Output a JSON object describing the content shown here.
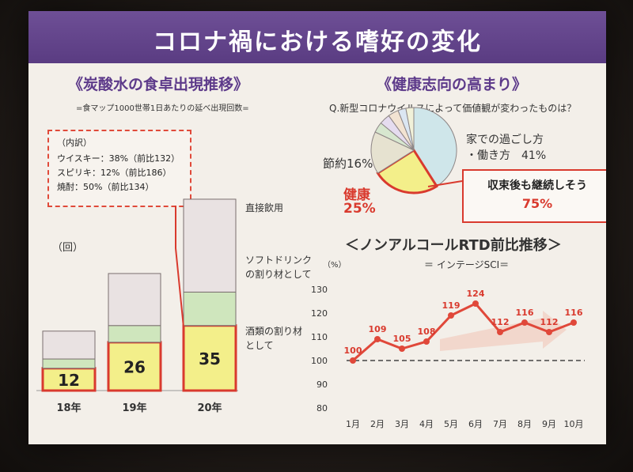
{
  "slide": {
    "title": "コロナ禍における嗜好の変化"
  },
  "left": {
    "heading": "《炭酸水の食卓出現推移》",
    "note": "=食マップ1000世帯1日あたりの延べ出現回数=",
    "unit_label": "（回）",
    "breakdown": {
      "heading": "（内訳）",
      "lines": [
        "ウイスキー：38%（前比132）",
        "スピリキ：12%（前比186）",
        "焼酎：50%（前比134）"
      ]
    },
    "legend": [
      "直接飲用",
      "ソフトドリンクの割り材として",
      "酒類の割り材として"
    ]
  },
  "right_top": {
    "heading": "《健康志向の高まり》",
    "question": "Q.新型コロナウイルスによって価値観が変わったものは？",
    "callout_line1": "収束後も継続しそう",
    "callout_line2": "75%",
    "labels": {
      "home_line1": "家での過ごし方",
      "home_line2": "・働き方　41%",
      "saving": "節約16%",
      "health_word": "健康",
      "health_pct": "25%"
    }
  },
  "right_bottom": {
    "heading": "＜ノンアルコールRTD前比推移＞",
    "subtitle": "＝ インテージSCI＝",
    "unit": "（%）"
  },
  "colors": {
    "purple": "#5d3a8a",
    "red": "#d93a2e",
    "yellow": "#f3ef8a",
    "green": "#cfe6bd",
    "gray": "#e9e2e2"
  },
  "chart_data": [
    {
      "type": "bar",
      "stacked": true,
      "categories": [
        "18年",
        "19年",
        "20年"
      ],
      "series": [
        {
          "name": "酒類の割り材として",
          "values": [
            12,
            26,
            35
          ],
          "color": "#f3ef8a"
        },
        {
          "name": "ソフトドリンクの割り材として",
          "values": [
            5,
            9,
            18
          ],
          "color": "#cfe6bd"
        },
        {
          "name": "直接飲用",
          "values": [
            15,
            28,
            50
          ],
          "color": "#e9e2e2"
        }
      ],
      "data_labels": [
        "12",
        "26",
        "35"
      ],
      "ylabel": "（回）"
    },
    {
      "type": "pie",
      "slices": [
        {
          "label": "家での過ごし方・働き方",
          "value": 41,
          "color": "#cfe6ea"
        },
        {
          "label": "健康",
          "value": 25,
          "color": "#f3ef8a"
        },
        {
          "label": "節約",
          "value": 16,
          "color": "#e6e2d0"
        },
        {
          "label": "",
          "value": 4,
          "color": "#d7e7cf"
        },
        {
          "label": "",
          "value": 4,
          "color": "#e5dcef"
        },
        {
          "label": "",
          "value": 4,
          "color": "#f2e3d2"
        },
        {
          "label": "",
          "value": 3,
          "color": "#dbe6f2"
        },
        {
          "label": "",
          "value": 3,
          "color": "#f1f1d9"
        }
      ]
    },
    {
      "type": "line",
      "x": [
        "1月",
        "2月",
        "3月",
        "4月",
        "5月",
        "6月",
        "7月",
        "8月",
        "9月",
        "10月"
      ],
      "series": [
        {
          "values": [
            100,
            109,
            105,
            108,
            119,
            124,
            112,
            116,
            112,
            116
          ]
        }
      ],
      "yticks": [
        "80",
        "90",
        "100",
        "110",
        "120",
        "130"
      ],
      "ylim": [
        80,
        130
      ],
      "reference_line": 100
    }
  ]
}
